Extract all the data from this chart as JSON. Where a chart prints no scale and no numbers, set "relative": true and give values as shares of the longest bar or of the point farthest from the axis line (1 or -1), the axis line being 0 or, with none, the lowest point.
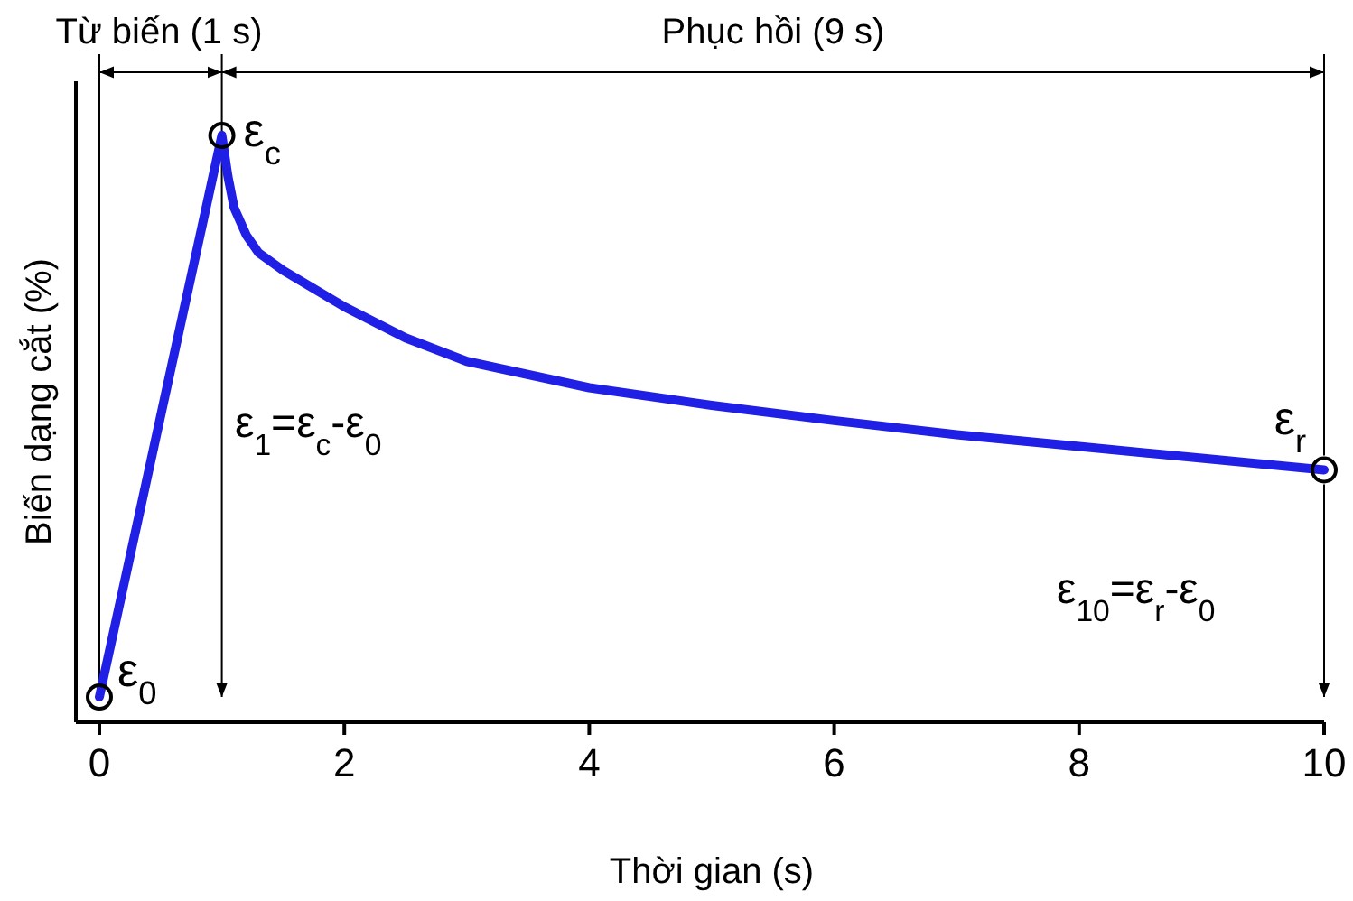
{
  "chart_data": {
    "type": "line",
    "relative": true,
    "xlabel": "Thời gian (s)",
    "ylabel": "Biến dạng cắt (%)",
    "xlim": [
      0,
      10
    ],
    "xticks": [
      0,
      2,
      4,
      6,
      8,
      10
    ],
    "series": [
      {
        "color": "#1f1fe6",
        "line_style": "solid",
        "x": [
          0,
          1,
          1.05,
          1.1,
          1.2,
          1.3,
          1.5,
          2,
          2.5,
          3,
          4,
          5,
          6,
          7,
          8,
          9,
          10
        ],
        "values": [
          0.043,
          1,
          0.93,
          0.877,
          0.83,
          0.8,
          0.77,
          0.708,
          0.655,
          0.615,
          0.57,
          0.54,
          0.514,
          0.49,
          0.47,
          0.45,
          0.43
        ]
      },
      {
        "type": "scatter",
        "color": "#000000",
        "marker": "circle",
        "x": [
          0,
          1,
          10
        ],
        "values": [
          0.043,
          1,
          0.43
        ]
      }
    ],
    "ref_lines": [
      {
        "axis": "x",
        "value": 1,
        "color": "#000000"
      },
      {
        "axis": "x",
        "value": 10,
        "color": "#000000"
      }
    ],
    "annotations": [
      "Từ biến (1 s)",
      "Phục hồi (9 s)",
      {
        "text": "ε$_{0}$",
        "x": 0,
        "y": 0.043
      },
      {
        "text": "ε$_{c}$",
        "x": 1,
        "y": 1
      },
      {
        "text": "ε$_{r}$",
        "x": 10,
        "y": 0.43
      },
      "ε$_{1}$=ε$_{c}$-ε$_{0}$",
      "ε$_{10}$=ε$_{r}$-ε$_{0}$"
    ]
  }
}
